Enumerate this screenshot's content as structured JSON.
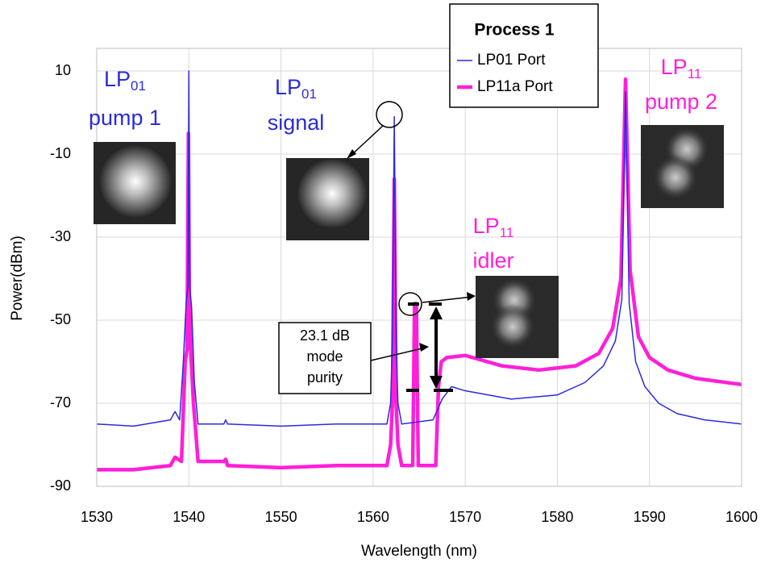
{
  "chart_data": {
    "type": "line",
    "x_label": "Wavelength (nm)",
    "y_label": "Power(dBm)",
    "xlim": [
      1530,
      1600
    ],
    "xticks": [
      1530,
      1540,
      1550,
      1560,
      1570,
      1580,
      1590,
      1600
    ],
    "ylim": [
      -90,
      10
    ],
    "yticks": [
      -90,
      -70,
      -50,
      -30,
      -10,
      10
    ],
    "grid": true,
    "legend": {
      "title": "Process 1",
      "position": "top-center"
    },
    "series": [
      {
        "name": "LP01 Port",
        "color": "#2b2bdc",
        "width": 1.5,
        "x": [
          1530,
          1534,
          1538,
          1538.5,
          1539,
          1539.4,
          1539.7,
          1539.9,
          1540,
          1540.1,
          1540.3,
          1540.6,
          1541,
          1543.8,
          1544,
          1544.2,
          1550,
          1556,
          1561.5,
          1561.9,
          1562.1,
          1562.3,
          1562.5,
          1562.7,
          1563.1,
          1566.5,
          1567.5,
          1568.5,
          1570,
          1575,
          1580,
          1583,
          1585,
          1586.3,
          1587,
          1587.4,
          1587.8,
          1588.5,
          1589.5,
          1591,
          1593,
          1596,
          1600
        ],
        "values": [
          -75,
          -75.5,
          -74,
          -72,
          -74,
          -60,
          -46,
          -42,
          10,
          -42,
          -47,
          -65,
          -75,
          -75,
          -74,
          -75,
          -75.5,
          -75,
          -75,
          -70,
          -55,
          -1,
          -55,
          -70,
          -75,
          -74,
          -69,
          -66,
          -67,
          -69,
          -68,
          -65,
          -61,
          -55,
          -45,
          5,
          -46,
          -60,
          -66,
          -70,
          -72.5,
          -74,
          -75
        ]
      },
      {
        "name": "LP11a Port",
        "color": "#ff1fd9",
        "width": 4.5,
        "x": [
          1530,
          1534,
          1538,
          1538.5,
          1539.2,
          1539.6,
          1539.8,
          1539.95,
          1540.05,
          1540.2,
          1540.5,
          1541,
          1543.8,
          1544,
          1544.2,
          1550,
          1556,
          1561.5,
          1561.9,
          1562.1,
          1562.3,
          1562.5,
          1562.7,
          1563.1,
          1564.3,
          1564.5,
          1564.7,
          1564.9,
          1566.8,
          1567.1,
          1567.4,
          1568,
          1570,
          1574,
          1578,
          1582,
          1584.5,
          1586,
          1586.9,
          1587.4,
          1587.9,
          1588.8,
          1590,
          1592,
          1595,
          1600
        ],
        "values": [
          -86,
          -86,
          -85,
          -83,
          -84,
          -60,
          -57,
          -5,
          -44,
          -57,
          -70,
          -84,
          -84,
          -83.5,
          -85,
          -85.5,
          -85,
          -85,
          -80,
          -70,
          -16,
          -70,
          -80,
          -85,
          -85,
          -46,
          -46,
          -85,
          -85,
          -66,
          -60,
          -59,
          -58.5,
          -61,
          -62,
          -61,
          -58,
          -52,
          -40,
          8,
          -38,
          -54,
          -59,
          -62,
          -64,
          -65.5
        ]
      }
    ],
    "annotations": [
      {
        "text": "LP",
        "sub": "01",
        "line2": "pump 1",
        "color": "#2b2bdc"
      },
      {
        "text": "LP",
        "sub": "01",
        "line2": "signal",
        "color": "#2b2bdc"
      },
      {
        "text": "LP",
        "sub": "11",
        "line2": "idler",
        "color": "#ff1fd9"
      },
      {
        "text": "LP",
        "sub": "11",
        "line2": "pump 2",
        "color": "#ff1fd9"
      }
    ],
    "callout": [
      "23.1 dB",
      "mode",
      "purity"
    ]
  }
}
